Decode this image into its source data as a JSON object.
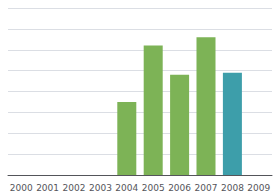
{
  "chart_data": {
    "type": "bar",
    "categories": [
      "2000",
      "2001",
      "2002",
      "2003",
      "2004",
      "2005",
      "2006",
      "2007",
      "2008",
      "2009"
    ],
    "values": [
      0,
      0,
      0,
      0,
      3.5,
      6.2,
      4.8,
      6.6,
      4.9,
      0
    ],
    "colors": [
      "#7db356",
      "#7db356",
      "#7db356",
      "#7db356",
      "#7db356",
      "#7db356",
      "#7db356",
      "#7db356",
      "#3d9eaa",
      "#3d9eaa"
    ],
    "ylim": [
      0,
      8
    ],
    "yticks": [
      0,
      1,
      2,
      3,
      4,
      5,
      6,
      7,
      8
    ],
    "grid": true,
    "tick_labels": "x"
  }
}
